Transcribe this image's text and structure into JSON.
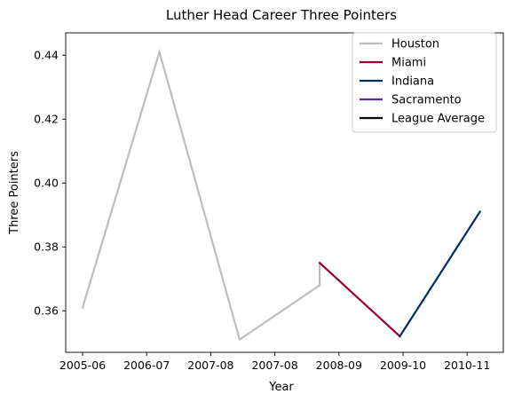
{
  "chart_data": {
    "type": "line",
    "title": "Luther Head Career Three Pointers",
    "xlabel": "Year",
    "ylabel": "Three Pointers",
    "x_ticks": [
      "2005-06",
      "2006-07",
      "2007-08",
      "2007-08",
      "2008-09",
      "2009-10",
      "2010-11"
    ],
    "ylim": [
      0.347,
      0.447
    ],
    "y_ticks": [
      0.36,
      0.38,
      0.4,
      0.42,
      0.44
    ],
    "grid": false,
    "legend_position": "top-right",
    "series": [
      {
        "name": "Houston",
        "color": "#bdbdbd",
        "points": [
          [
            0.0,
            0.361
          ],
          [
            1.2,
            0.441
          ],
          [
            2.45,
            0.351
          ],
          [
            3.7,
            0.368
          ],
          [
            3.7,
            0.375
          ]
        ]
      },
      {
        "name": "Miami",
        "color": "#98002e",
        "points": [
          [
            3.7,
            0.375
          ],
          [
            4.95,
            0.352
          ]
        ]
      },
      {
        "name": "Indiana",
        "color": "#002d62",
        "points": [
          [
            4.95,
            0.352
          ],
          [
            6.2,
            0.391
          ]
        ]
      },
      {
        "name": "Sacramento",
        "color": "#5a2d81",
        "points": []
      },
      {
        "name": "League Average",
        "color": "#000000",
        "points": []
      }
    ]
  }
}
